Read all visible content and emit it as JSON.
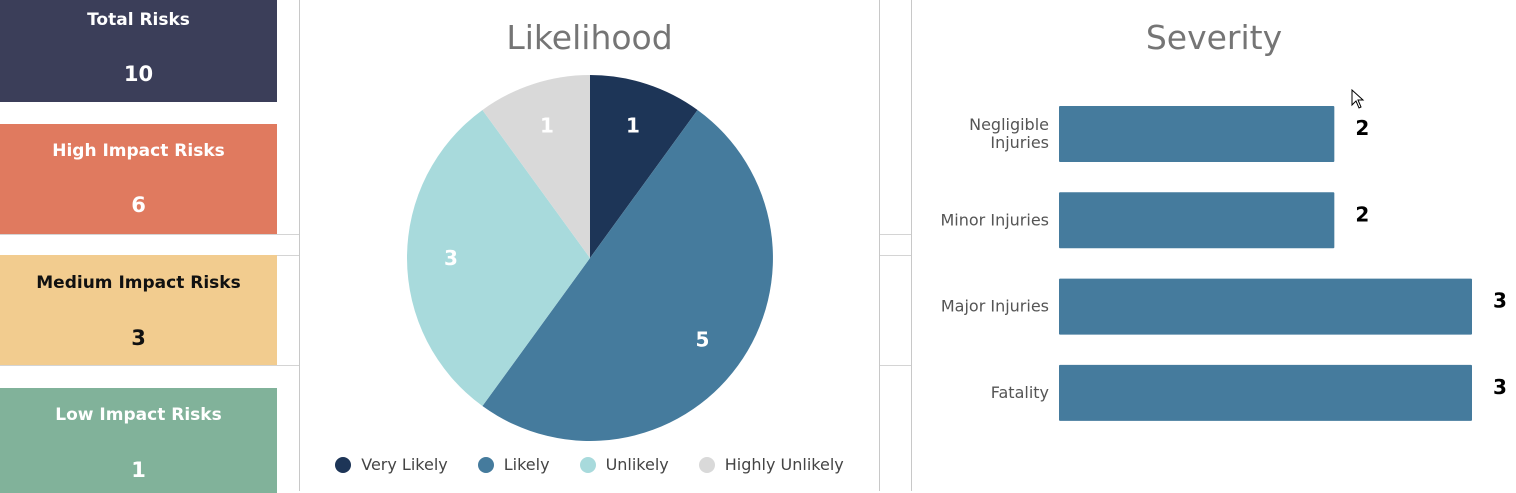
{
  "cards": {
    "total": {
      "label": "Total Risks",
      "value": "10"
    },
    "high": {
      "label": "High Impact Risks",
      "value": "6"
    },
    "medium": {
      "label": "Medium Impact Risks",
      "value": "3"
    },
    "low": {
      "label": "Low Impact Risks",
      "value": "1"
    }
  },
  "colors": {
    "total": "#3b3e59",
    "high": "#e07a5f",
    "medium": "#f2cc8f",
    "low": "#81b29a",
    "bar": "#457b9d"
  },
  "chart_data": [
    {
      "type": "pie",
      "title": "Likelihood",
      "categories": [
        "Very Likely",
        "Likely",
        "Unlikely",
        "Highly Unlikely"
      ],
      "values": [
        1,
        5,
        3,
        1
      ],
      "colors": [
        "#1d3557",
        "#457b9d",
        "#a8dadc",
        "#d9d9d9"
      ],
      "legend": "bottom",
      "data_labels": true
    },
    {
      "type": "bar",
      "orientation": "horizontal",
      "title": "Severity",
      "categories": [
        "Negligible Injuries",
        "Minor Injuries",
        "Major Injuries",
        "Fatality"
      ],
      "category_lines": [
        [
          "Negligible",
          "Injuries"
        ],
        [
          "Minor Injuries"
        ],
        [
          "Major Injuries"
        ],
        [
          "Fatality"
        ]
      ],
      "values": [
        2,
        2,
        3,
        3
      ],
      "xlim": [
        0,
        3
      ],
      "color": "#457b9d",
      "data_labels": true,
      "grid": false
    }
  ]
}
